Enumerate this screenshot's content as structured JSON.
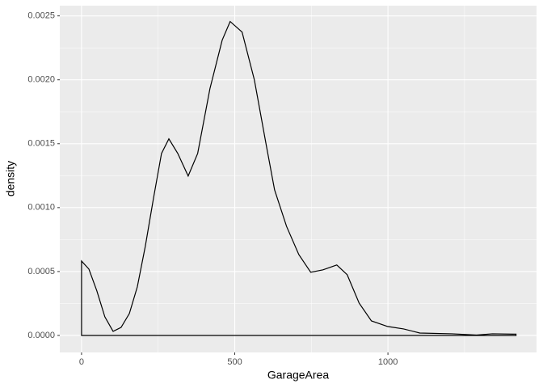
{
  "chart_data": {
    "type": "density",
    "x_label": "GarageArea",
    "y_label": "density",
    "x": [
      0,
      24,
      50,
      76,
      103,
      129,
      156,
      182,
      208,
      235,
      261,
      285,
      314,
      348,
      379,
      419,
      459,
      485,
      524,
      564,
      603,
      630,
      669,
      709,
      748,
      788,
      833,
      867,
      906,
      946,
      999,
      1051,
      1104,
      1209,
      1289,
      1341,
      1418
    ],
    "values": [
      0.000582,
      0.000519,
      0.000348,
      0.000146,
      3.2e-05,
      6.3e-05,
      0.000171,
      0.00038,
      0.000696,
      0.001076,
      0.001424,
      0.001538,
      0.001424,
      0.001247,
      0.001424,
      0.00193,
      0.00231,
      0.002456,
      0.002373,
      0.002,
      0.001487,
      0.001139,
      0.000854,
      0.000633,
      0.000494,
      0.000513,
      0.000551,
      0.000475,
      0.000253,
      0.000114,
      7e-05,
      5.1e-05,
      1.9e-05,
      1.3e-05,
      3e-06,
      1.3e-05,
      1e-05
    ],
    "color": "#000000",
    "xlim": [
      -71,
      1485
    ],
    "xticks": [
      0,
      500,
      1000
    ],
    "ylim": [
      -0.000133,
      0.00258
    ],
    "yticks": [
      {
        "value": 0,
        "label": "0.0000"
      },
      {
        "value": 0.0005,
        "label": "0.0005"
      },
      {
        "value": 0.001,
        "label": "0.0010"
      },
      {
        "value": 0.0015,
        "label": "0.0015"
      },
      {
        "value": 0.002,
        "label": "0.0020"
      },
      {
        "value": 0.0025,
        "label": "0.0025"
      }
    ],
    "grid": true
  }
}
